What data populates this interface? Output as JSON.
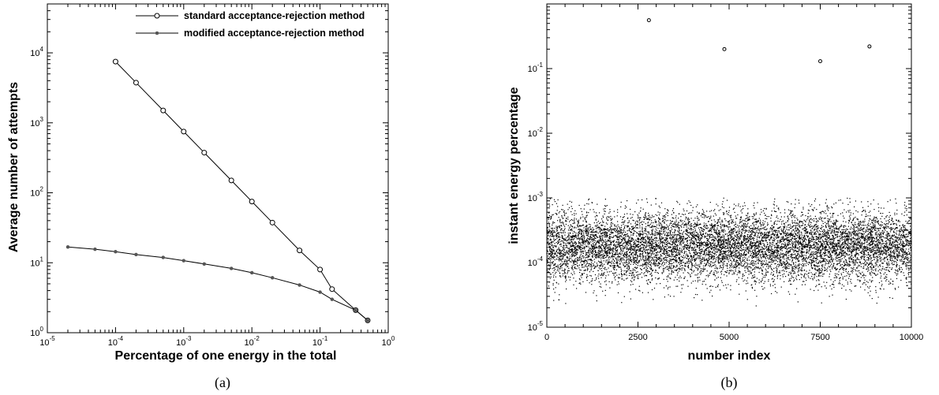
{
  "chart_data": [
    {
      "type": "line",
      "caption": "(a)",
      "xlabel": "Percentage of one energy in the total",
      "ylabel": "Average number of attempts",
      "xscale": "log",
      "yscale": "log",
      "xlim": [
        1e-05,
        1
      ],
      "ylim": [
        1,
        50000
      ],
      "xticks": [
        {
          "base": "10",
          "exp": "-5"
        },
        {
          "base": "10",
          "exp": "-4"
        },
        {
          "base": "10",
          "exp": "-3"
        },
        {
          "base": "10",
          "exp": "-2"
        },
        {
          "base": "10",
          "exp": "-1"
        },
        {
          "base": "10",
          "exp": "0"
        }
      ],
      "yticks": [
        {
          "base": "10",
          "exp": "0"
        },
        {
          "base": "10",
          "exp": "1"
        },
        {
          "base": "10",
          "exp": "2"
        },
        {
          "base": "10",
          "exp": "3"
        },
        {
          "base": "10",
          "exp": "4"
        }
      ],
      "grid": false,
      "legend_position": "top-right",
      "series": [
        {
          "name": "standard acceptance-rejection method",
          "marker": "open-circle",
          "x": [
            0.0001,
            0.0002,
            0.0005,
            0.001,
            0.002,
            0.005,
            0.01,
            0.02,
            0.05,
            0.1,
            0.15,
            0.333,
            0.5
          ],
          "y": [
            7500,
            3750,
            1500,
            750,
            375,
            150,
            75,
            37.5,
            15,
            8,
            4.2,
            2.1,
            1.5
          ]
        },
        {
          "name": "modified acceptance-rejection method",
          "marker": "filled-dot",
          "x": [
            2e-05,
            5e-05,
            0.0001,
            0.0002,
            0.0005,
            0.001,
            0.002,
            0.005,
            0.01,
            0.02,
            0.05,
            0.1,
            0.15,
            0.333,
            0.5
          ],
          "y": [
            16.8,
            15.6,
            14.4,
            13.1,
            11.9,
            10.7,
            9.6,
            8.3,
            7.2,
            6.1,
            4.8,
            3.8,
            3.0,
            2.1,
            1.5
          ]
        }
      ]
    },
    {
      "type": "scatter",
      "caption": "(b)",
      "xlabel": "number index",
      "ylabel": "instant energy percentage",
      "xscale": "linear",
      "yscale": "log",
      "xlim": [
        0,
        10000
      ],
      "ylim": [
        1e-05,
        1
      ],
      "xticks": [
        "0",
        "2500",
        "5000",
        "7500",
        "10000"
      ],
      "yticks": [
        {
          "base": "10",
          "exp": "-5"
        },
        {
          "base": "10",
          "exp": "-4"
        },
        {
          "base": "10",
          "exp": "-3"
        },
        {
          "base": "10",
          "exp": "-2"
        },
        {
          "base": "10",
          "exp": "-1"
        }
      ],
      "grid": false,
      "n_points": 10000,
      "bulk_distribution": {
        "median": 0.00018,
        "min": 1e-05,
        "max": 0.001
      },
      "outliers": [
        {
          "x": 2800,
          "y": 0.56
        },
        {
          "x": 4870,
          "y": 0.2
        },
        {
          "x": 7500,
          "y": 0.13
        },
        {
          "x": 8850,
          "y": 0.22
        }
      ]
    }
  ]
}
